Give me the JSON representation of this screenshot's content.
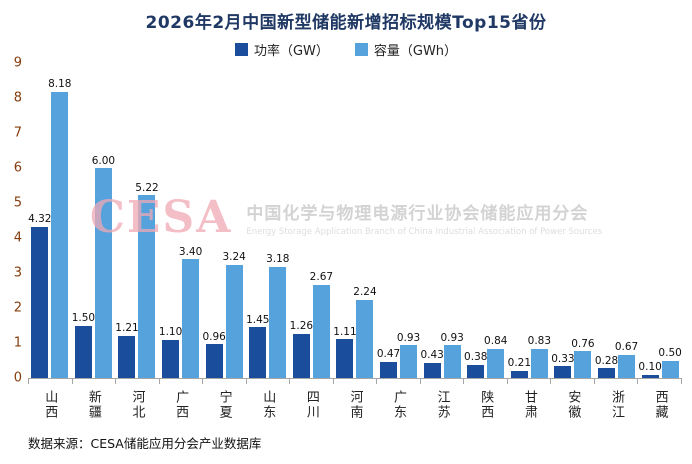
{
  "title": "2026年2月中国新型储能新增招标规模Top15省份",
  "legend": [
    {
      "label": "功率（GW）",
      "color": "#1a4e9c"
    },
    {
      "label": "容量（GWh）",
      "color": "#56a2dc"
    }
  ],
  "watermark": {
    "logo": "CESA",
    "cn": "中国化学与物理电源行业协会储能应用分会",
    "en": "Energy Storage Application Branch of China Industrial Association of Power Sources"
  },
  "source": "数据来源：CESA储能应用分会产业数据库",
  "chart_data": {
    "type": "bar",
    "title": "2026年2月中国新型储能新增招标规模Top15省份",
    "categories": [
      "山西",
      "新疆",
      "河北",
      "广西",
      "宁夏",
      "山东",
      "四川",
      "河南",
      "广东",
      "江苏",
      "陕西",
      "甘肃",
      "安徽",
      "浙江",
      "西藏"
    ],
    "series": [
      {
        "name": "功率（GW）",
        "color": "#1a4e9c",
        "values": [
          4.32,
          1.5,
          1.21,
          1.1,
          0.96,
          1.45,
          1.26,
          1.11,
          0.47,
          0.43,
          0.38,
          0.21,
          0.33,
          0.28,
          0.1
        ]
      },
      {
        "name": "容量（GWh）",
        "color": "#56a2dc",
        "values": [
          8.18,
          6.0,
          5.22,
          3.4,
          3.24,
          3.18,
          2.67,
          2.24,
          0.93,
          0.93,
          0.84,
          0.83,
          0.76,
          0.67,
          0.5
        ]
      }
    ],
    "ylim": [
      0,
      9
    ],
    "ytick_step": 1,
    "grid": false,
    "legend_position": "top",
    "value_labels": true,
    "value_label_format": "2dp"
  }
}
